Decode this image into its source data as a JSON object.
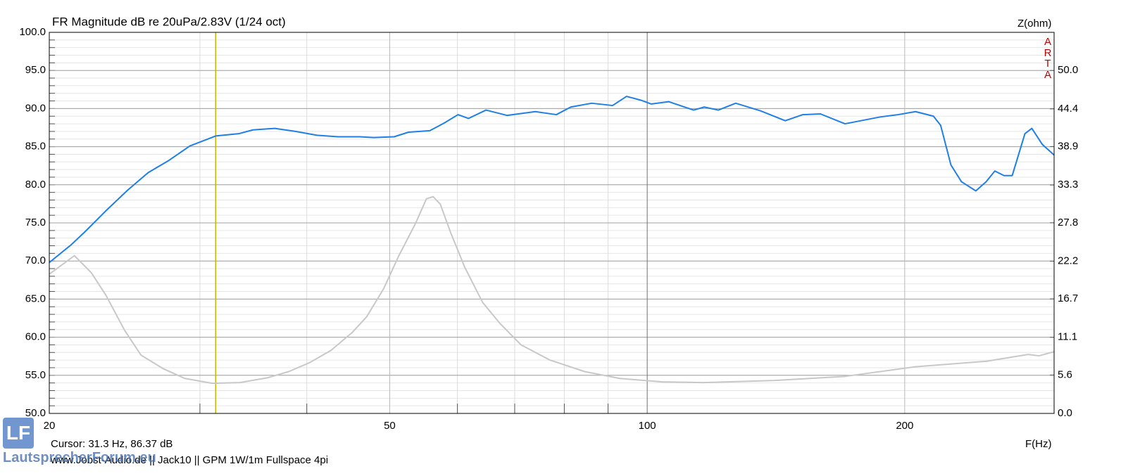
{
  "chart_data": {
    "type": "line",
    "title": "FR Magnitude dB re 20uPa/2.83V (1/24 oct)",
    "y2_label": "Z(ohm)",
    "x_label": "F(Hz)",
    "brand": "ARTA",
    "cursor": {
      "x": 31.3,
      "label": "Cursor: 31.3 Hz, 86.37 dB",
      "color": "#c8b400"
    },
    "footer": "www.Jobst-Audio.de  ||  Jack10  ||  GPM 1W/1m Fullspace 4pi",
    "logo": {
      "mark": "LF",
      "text": "LautsprecherForum.eu"
    },
    "xscale": "log",
    "xlim": [
      20,
      299
    ],
    "xticks": [
      20,
      50,
      100,
      200
    ],
    "xminor": [
      30,
      40,
      60,
      70,
      80,
      90
    ],
    "ylim": [
      50,
      100
    ],
    "yticks": [
      {
        "value": 50,
        "label": "50.0"
      },
      {
        "value": 55,
        "label": "55.0"
      },
      {
        "value": 60,
        "label": "60.0"
      },
      {
        "value": 65,
        "label": "65.0"
      },
      {
        "value": 70,
        "label": "70.0"
      },
      {
        "value": 75,
        "label": "75.0"
      },
      {
        "value": 80,
        "label": "80.0"
      },
      {
        "value": 85,
        "label": "85.0"
      },
      {
        "value": 90,
        "label": "90.0"
      },
      {
        "value": 95,
        "label": "95.0"
      },
      {
        "value": 100,
        "label": "100.0"
      }
    ],
    "yminor": 1,
    "y2lim": [
      0,
      55.56
    ],
    "y2ticks": [
      {
        "value": 0,
        "label": "0.0"
      },
      5.6,
      11.1,
      16.7,
      22.2,
      27.8,
      33.3,
      38.9,
      44.4,
      {
        "value": 50,
        "label": "50.0"
      }
    ],
    "grid": true,
    "series": [
      {
        "color": "#1e7fe6",
        "x": [
          20,
          21.2,
          22.0,
          23.3,
          24.7,
          26.1,
          27.6,
          29.2,
          31.3,
          33.3,
          34.6,
          36.7,
          38.8,
          41.1,
          43.5,
          46.1,
          47.9,
          50.6,
          52.6,
          55.7,
          57.9,
          60.1,
          61.8,
          64.8,
          68.6,
          74.0,
          78.3,
          81.4,
          86.1,
          91.1,
          94.6,
          98.3,
          101.1,
          106.0,
          113.3,
          116.6,
          121.1,
          126.9,
          135.7,
          145.0,
          152.0,
          159.4,
          170.3,
          187.3,
          196.5,
          205.9,
          216.1,
          220.3,
          226.5,
          233.0,
          242.2,
          249.0,
          254.9,
          261.3,
          267.1,
          276.4,
          281.6,
          289.6,
          299
        ],
        "values": [
          69.8,
          72.1,
          73.8,
          76.6,
          79.3,
          81.6,
          83.2,
          85.1,
          86.4,
          86.7,
          87.2,
          87.4,
          87.0,
          86.5,
          86.3,
          86.3,
          86.2,
          86.3,
          86.9,
          87.1,
          88.1,
          89.2,
          88.7,
          89.8,
          89.1,
          89.6,
          89.2,
          90.2,
          90.7,
          90.4,
          91.6,
          91.1,
          90.6,
          90.9,
          89.8,
          90.2,
          89.8,
          90.7,
          89.7,
          88.4,
          89.2,
          89.3,
          88.0,
          88.9,
          89.2,
          89.6,
          89.0,
          87.8,
          82.6,
          80.4,
          79.2,
          80.4,
          81.8,
          81.2,
          81.2,
          86.7,
          87.4,
          85.3,
          83.9
        ]
      },
      {
        "color": "#c8c8c8",
        "axis": "y2",
        "x": [
          20,
          21.4,
          22.4,
          23.3,
          24.5,
          25.6,
          27.2,
          28.8,
          31.0,
          33.4,
          36.0,
          38.1,
          40.3,
          42.7,
          45.2,
          47.0,
          49.2,
          51.2,
          53.6,
          55.2,
          56.2,
          57.3,
          58.9,
          61.2,
          64.2,
          67.3,
          71.2,
          76.9,
          84.5,
          92.9,
          104.1,
          116.6,
          140.9,
          170.3,
          205.9,
          249.0,
          278.8,
          287.1,
          299
        ],
        "values": [
          20.3,
          23.0,
          20.5,
          17.2,
          12.1,
          8.5,
          6.5,
          5.1,
          4.4,
          4.5,
          5.2,
          6.1,
          7.4,
          9.2,
          11.8,
          14.1,
          18.2,
          22.9,
          27.7,
          31.3,
          31.6,
          30.5,
          26.4,
          21.3,
          16.2,
          13.1,
          10.0,
          7.8,
          6.1,
          5.1,
          4.6,
          4.5,
          4.8,
          5.4,
          6.8,
          7.6,
          8.6,
          8.4,
          9.0
        ]
      }
    ]
  }
}
